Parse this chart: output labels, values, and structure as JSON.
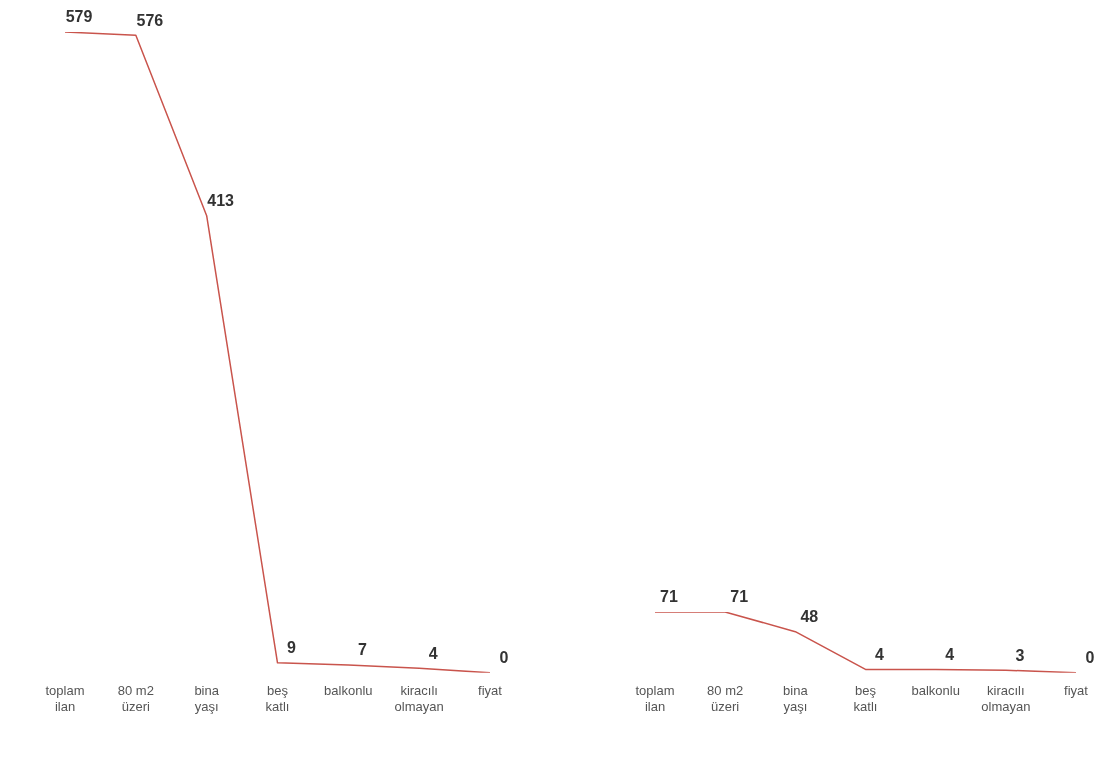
{
  "chart_data": [
    {
      "type": "line",
      "categories": [
        "toplam\nilan",
        "80 m2\nüzeri",
        "bina\nyaşı",
        "beş\nkatlı",
        "balkonlu",
        "kiracılı\nolmayan",
        "fiyat"
      ],
      "values": [
        579,
        576,
        413,
        9,
        7,
        4,
        0
      ],
      "color": "#c9544c",
      "data_labels": true,
      "marker": "none"
    },
    {
      "type": "line",
      "categories": [
        "toplam\nilan",
        "80 m2\nüzeri",
        "bina\nyaşı",
        "beş\nkatlı",
        "balkonlu",
        "kiracılı\nolmayan",
        "fiyat"
      ],
      "values": [
        71,
        71,
        48,
        4,
        4,
        3,
        0
      ],
      "color": "#c9544c",
      "data_labels": true,
      "marker": "none"
    }
  ]
}
